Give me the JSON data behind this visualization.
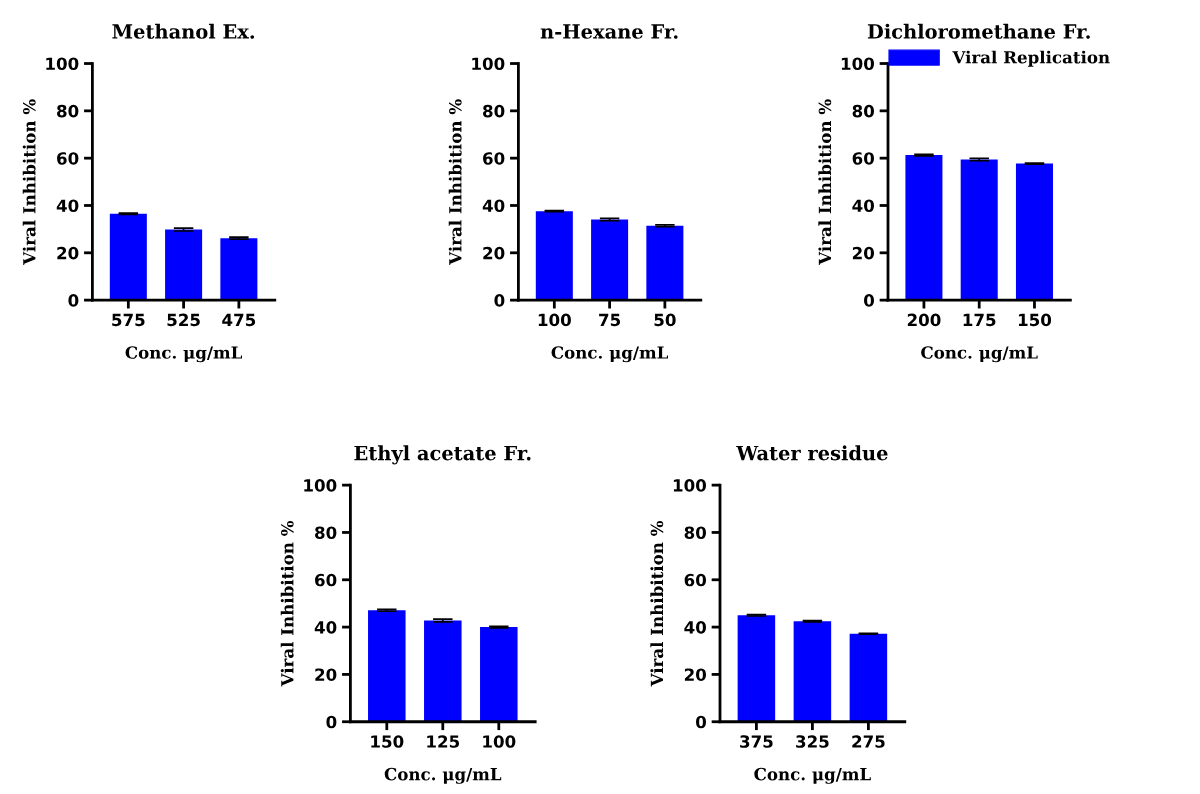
{
  "chart_data": [
    {
      "type": "bar",
      "title": "Methanol Ex.",
      "xlabel": "Conc. μg/mL",
      "ylabel": "Viral Inhibition %",
      "categories": [
        "575",
        "525",
        "475"
      ],
      "series": [
        {
          "color": "#0000ff",
          "values": [
            36.5,
            29.8,
            26.2
          ],
          "errors": [
            0.3,
            0.6,
            0.4
          ]
        }
      ],
      "ylim": [
        0,
        100
      ],
      "yticks": [
        0,
        20,
        40,
        60,
        80,
        100
      ],
      "grid": false,
      "legend": false
    },
    {
      "type": "bar",
      "title": "n-Hexane Fr.",
      "xlabel": "Conc. μg/mL",
      "ylabel": "Viral Inhibition %",
      "categories": [
        "100",
        "75",
        "50"
      ],
      "series": [
        {
          "color": "#0000ff",
          "values": [
            37.6,
            34.1,
            31.4
          ],
          "errors": [
            0.2,
            0.5,
            0.4
          ]
        }
      ],
      "ylim": [
        0,
        100
      ],
      "yticks": [
        0,
        20,
        40,
        60,
        80,
        100
      ],
      "grid": false,
      "legend": false
    },
    {
      "type": "bar",
      "title": "Dichloromethane Fr.",
      "xlabel": "Conc. μg/mL",
      "ylabel": "Viral Inhibition %",
      "categories": [
        "200",
        "175",
        "150"
      ],
      "series": [
        {
          "name": "Viral Replication",
          "color": "#0000ff",
          "values": [
            61.3,
            59.4,
            57.7
          ],
          "errors": [
            0.3,
            0.5,
            0.2
          ]
        }
      ],
      "ylim": [
        0,
        100
      ],
      "yticks": [
        0,
        20,
        40,
        60,
        80,
        100
      ],
      "grid": false,
      "legend": "top right"
    },
    {
      "type": "bar",
      "title": "Ethyl acetate Fr.",
      "xlabel": "Conc. μg/mL",
      "ylabel": "Viral Inhibition %",
      "categories": [
        "150",
        "125",
        "100"
      ],
      "series": [
        {
          "color": "#0000ff",
          "values": [
            47.1,
            42.8,
            40.0
          ],
          "errors": [
            0.4,
            0.6,
            0.3
          ]
        }
      ],
      "ylim": [
        0,
        100
      ],
      "yticks": [
        0,
        20,
        40,
        60,
        80,
        100
      ],
      "grid": false,
      "legend": false
    },
    {
      "type": "bar",
      "title": "Water residue",
      "xlabel": "Conc. μg/mL",
      "ylabel": "Viral Inhibition %",
      "categories": [
        "375",
        "325",
        "275"
      ],
      "series": [
        {
          "color": "#0000ff",
          "values": [
            45.0,
            42.5,
            37.2
          ],
          "errors": [
            0.3,
            0.3,
            0.2
          ]
        }
      ],
      "ylim": [
        0,
        100
      ],
      "yticks": [
        0,
        20,
        40,
        60,
        80,
        100
      ],
      "grid": false,
      "legend": false
    }
  ]
}
